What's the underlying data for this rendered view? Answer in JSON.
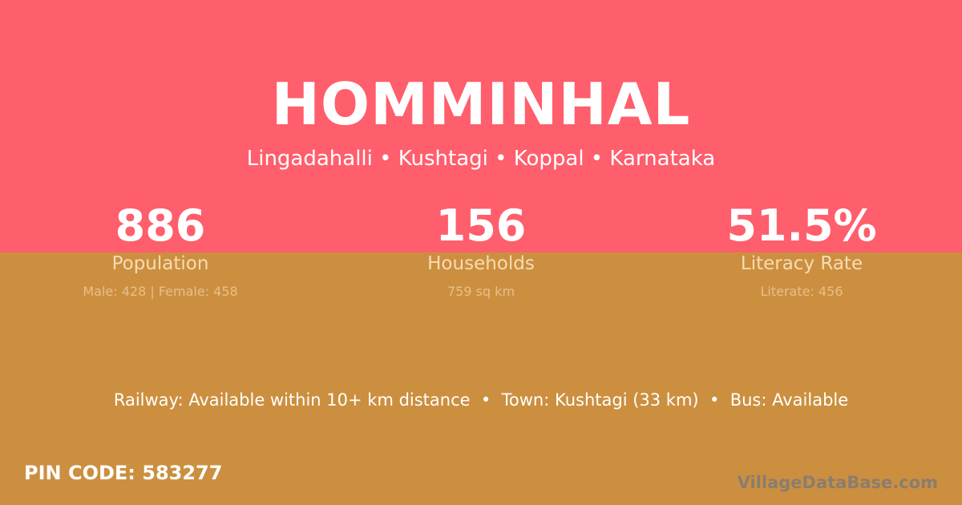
{
  "village": {
    "name": "HOMMINHAL",
    "location": "Lingadahalli • Kushtagi • Koppal • Karnataka"
  },
  "stats": [
    {
      "value": "886",
      "label": "Population",
      "detail": "Male: 428 | Female: 458"
    },
    {
      "value": "156",
      "label": "Households",
      "detail": "759 sq km"
    },
    {
      "value": "51.5%",
      "label": "Literacy Rate",
      "detail": "Literate: 456"
    }
  ],
  "connectivity": "Railway: Available within 10+ km distance  •  Town: Kushtagi (33 km)  •  Bus: Available",
  "pin_code": "PIN CODE: 583277",
  "watermark": "VillageDataBase.com",
  "colors": {
    "top": "#ff5e6c",
    "bottom": "#cc8f3f"
  }
}
